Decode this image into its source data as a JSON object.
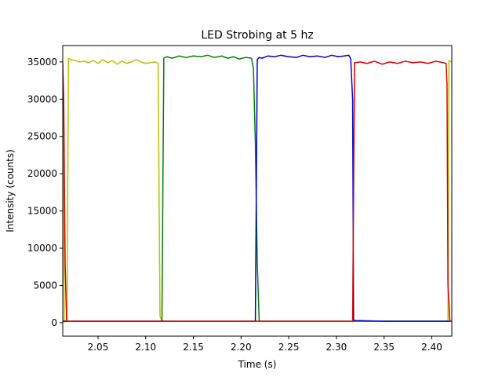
{
  "chart_data": {
    "type": "line",
    "title": "LED Strobing at 5 hz",
    "xlabel": "Time (s)",
    "ylabel": "Intensity (counts)",
    "xlim": [
      2.013,
      2.421
    ],
    "ylim": [
      -1800,
      37200
    ],
    "grid": false,
    "legend": "none",
    "x_ticks": [
      2.05,
      2.1,
      2.15,
      2.2,
      2.25,
      2.3,
      2.35,
      2.4
    ],
    "x_tick_labels": [
      "2.05",
      "2.10",
      "2.15",
      "2.20",
      "2.25",
      "2.30",
      "2.35",
      "2.40"
    ],
    "y_ticks": [
      0,
      5000,
      10000,
      15000,
      20000,
      25000,
      30000,
      35000
    ],
    "y_tick_labels": [
      "0",
      "5000",
      "10000",
      "15000",
      "20000",
      "25000",
      "30000",
      "35000"
    ],
    "series": [
      {
        "color": "#bfbf00",
        "x": [
          2.013,
          2.0145,
          2.016,
          2.0175,
          2.019,
          2.022,
          2.026,
          2.03,
          2.035,
          2.04,
          2.045,
          2.05,
          2.055,
          2.06,
          2.065,
          2.07,
          2.075,
          2.08,
          2.085,
          2.09,
          2.095,
          2.1,
          2.105,
          2.11,
          2.113,
          2.115,
          2.117,
          2.12,
          2.15,
          2.2,
          2.25,
          2.3,
          2.35,
          2.4,
          2.415,
          2.417,
          2.418,
          2.419,
          2.421
        ],
        "y": [
          34900,
          150,
          150,
          150,
          35500,
          35300,
          35200,
          35000,
          35100,
          34900,
          35200,
          34800,
          35300,
          34900,
          35200,
          34700,
          35100,
          34800,
          35000,
          35300,
          35000,
          34800,
          34900,
          35000,
          34800,
          800,
          300,
          200,
          200,
          200,
          200,
          200,
          200,
          200,
          200,
          200,
          35200,
          35100,
          35000
        ]
      },
      {
        "color": "#008000",
        "x": [
          2.013,
          2.05,
          2.1,
          2.115,
          2.117,
          2.119,
          2.122,
          2.128,
          2.135,
          2.142,
          2.15,
          2.158,
          2.165,
          2.172,
          2.18,
          2.186,
          2.192,
          2.198,
          2.205,
          2.211,
          2.213,
          2.215,
          2.217,
          2.219,
          2.222,
          2.26,
          2.3,
          2.35,
          2.4,
          2.421
        ],
        "y": [
          200,
          200,
          200,
          200,
          200,
          35500,
          35700,
          35500,
          35800,
          35600,
          35800,
          35700,
          35900,
          35600,
          35800,
          35500,
          35700,
          35400,
          35600,
          35500,
          34000,
          24000,
          8000,
          200,
          200,
          200,
          200,
          200,
          200,
          200
        ]
      },
      {
        "color": "#0000cc",
        "x": [
          2.013,
          2.05,
          2.1,
          2.15,
          2.2,
          2.213,
          2.215,
          2.217,
          2.219,
          2.222,
          2.228,
          2.235,
          2.242,
          2.25,
          2.258,
          2.265,
          2.272,
          2.28,
          2.288,
          2.295,
          2.302,
          2.308,
          2.313,
          2.315,
          2.317,
          2.318,
          2.32,
          2.35,
          2.4,
          2.421
        ],
        "y": [
          200,
          200,
          200,
          200,
          200,
          200,
          200,
          35300,
          35600,
          35500,
          35800,
          35700,
          35900,
          35700,
          35600,
          35900,
          35700,
          35800,
          35600,
          35900,
          35700,
          35800,
          35900,
          35400,
          30000,
          400,
          300,
          200,
          200,
          200
        ]
      },
      {
        "color": "#dd0000",
        "x": [
          2.013,
          2.014,
          2.0155,
          2.017,
          2.02,
          2.05,
          2.1,
          2.15,
          2.2,
          2.25,
          2.3,
          2.315,
          2.317,
          2.319,
          2.325,
          2.332,
          2.34,
          2.348,
          2.356,
          2.364,
          2.372,
          2.38,
          2.388,
          2.396,
          2.404,
          2.412,
          2.415,
          2.416,
          2.417,
          2.419,
          2.421
        ],
        "y": [
          34900,
          30000,
          8000,
          200,
          200,
          200,
          200,
          200,
          200,
          200,
          200,
          200,
          200,
          34900,
          35000,
          34800,
          35100,
          34700,
          35000,
          34800,
          35100,
          34900,
          35000,
          34800,
          35100,
          34900,
          34800,
          32000,
          5000,
          200,
          200
        ]
      }
    ]
  }
}
